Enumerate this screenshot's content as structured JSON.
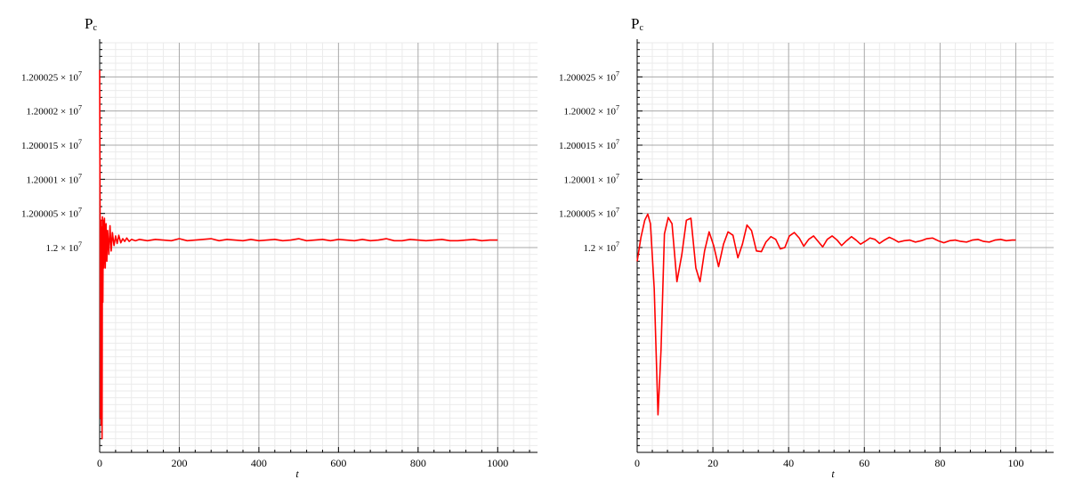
{
  "chart_data": [
    {
      "type": "line",
      "ylabel": "P",
      "ylabel_sub": "c",
      "xlabel": "t",
      "xlim": [
        0,
        1100
      ],
      "ylim": [
        11999970,
        12000030
      ],
      "x_ticks": [
        0,
        200,
        400,
        600,
        800,
        1000
      ],
      "x_tick_labels": [
        "0",
        "200",
        "400",
        "600",
        "800",
        "1000"
      ],
      "y_ticks": [
        12000000,
        12000005,
        12000010,
        12000015,
        12000020,
        12000025
      ],
      "y_tick_labels": [
        {
          "mantissa": "1.2",
          "exp": "7"
        },
        {
          "mantissa": "1.200005",
          "exp": "7"
        },
        {
          "mantissa": "1.20001",
          "exp": "7"
        },
        {
          "mantissa": "1.200015",
          "exp": "7"
        },
        {
          "mantissa": "1.20002",
          "exp": "7"
        },
        {
          "mantissa": "1.200025",
          "exp": "7"
        }
      ],
      "grid": true,
      "series": [
        {
          "color": "#ff0000",
          "x": [
            0,
            1,
            2,
            3,
            4,
            5,
            6,
            7,
            8,
            9,
            10,
            12,
            14,
            16,
            18,
            20,
            23,
            26,
            29,
            32,
            36,
            40,
            44,
            48,
            53,
            58,
            63,
            68,
            74,
            80,
            90,
            100,
            120,
            140,
            160,
            180,
            200,
            220,
            240,
            260,
            280,
            300,
            320,
            340,
            360,
            380,
            400,
            420,
            440,
            460,
            480,
            500,
            520,
            540,
            560,
            580,
            600,
            620,
            640,
            660,
            680,
            700,
            720,
            740,
            760,
            780,
            800,
            820,
            840,
            860,
            880,
            900,
            920,
            940,
            960,
            980,
            1000
          ],
          "y": [
            12000026,
            12000005,
            11999975,
            12000004,
            11999974,
            12000003,
            11999972,
            12000004.5,
            11999992,
            12000004,
            11999997,
            12000004.3,
            11999997,
            12000003.5,
            11999998,
            12000002.5,
            11999999,
            12000003.2,
            11999999.5,
            12000002.2,
            12000000.3,
            12000001.7,
            12000000.6,
            12000001.8,
            12000000.7,
            12000001.3,
            12000000.9,
            12000001.4,
            12000000.9,
            12000001.2,
            12000001.0,
            12000001.2,
            12000001.0,
            12000001.2,
            12000001.1,
            12000001.0,
            12000001.3,
            12000001.0,
            12000001.1,
            12000001.2,
            12000001.3,
            12000001.0,
            12000001.2,
            12000001.1,
            12000001.0,
            12000001.2,
            12000001.0,
            12000001.1,
            12000001.2,
            12000001.0,
            12000001.1,
            12000001.3,
            12000001.0,
            12000001.1,
            12000001.2,
            12000001.0,
            12000001.2,
            12000001.1,
            12000001.0,
            12000001.2,
            12000001.0,
            12000001.1,
            12000001.3,
            12000001.0,
            12000001.0,
            12000001.2,
            12000001.1,
            12000001.0,
            12000001.1,
            12000001.2,
            12000001.0,
            12000001.0,
            12000001.1,
            12000001.2,
            12000001.0,
            12000001.1,
            12000001.1
          ]
        }
      ]
    },
    {
      "type": "line",
      "ylabel": "P",
      "ylabel_sub": "c",
      "xlabel": "t",
      "xlim": [
        0,
        110
      ],
      "ylim": [
        11999970,
        12000030
      ],
      "x_ticks": [
        0,
        20,
        40,
        60,
        80,
        100
      ],
      "x_tick_labels": [
        "0",
        "20",
        "40",
        "60",
        "80",
        "100"
      ],
      "y_ticks": [
        12000000,
        12000005,
        12000010,
        12000015,
        12000020,
        12000025
      ],
      "y_tick_labels": [
        {
          "mantissa": "1.2",
          "exp": "7"
        },
        {
          "mantissa": "1.200005",
          "exp": "7"
        },
        {
          "mantissa": "1.20001",
          "exp": "7"
        },
        {
          "mantissa": "1.200015",
          "exp": "7"
        },
        {
          "mantissa": "1.20002",
          "exp": "7"
        },
        {
          "mantissa": "1.200025",
          "exp": "7"
        }
      ],
      "grid": true,
      "series": [
        {
          "color": "#ff0000",
          "x": [
            0,
            1,
            2,
            2.8,
            3.5,
            4.5,
            5.5,
            6.3,
            7.2,
            8.2,
            9.2,
            10.5,
            11.8,
            13,
            14.2,
            15.5,
            16.6,
            17.8,
            19,
            20.2,
            21.5,
            22.8,
            24,
            25.3,
            26.6,
            27.8,
            29,
            30.2,
            31.5,
            32.8,
            34,
            35.3,
            36.6,
            37.8,
            39,
            40.2,
            41.5,
            42.8,
            44,
            45.3,
            46.6,
            47.8,
            49,
            50.2,
            51.5,
            52.8,
            54,
            55.3,
            56.6,
            57.8,
            59,
            60.2,
            61.5,
            62.8,
            64,
            65.3,
            66.6,
            67.8,
            69,
            70.5,
            72,
            73.5,
            75,
            76.5,
            78,
            79.5,
            81,
            82.5,
            84,
            85.5,
            87,
            88.5,
            90,
            91.5,
            93,
            94.5,
            96,
            97.5,
            99,
            100
          ],
          "y": [
            11999998,
            12000001.5,
            12000004,
            12000004.9,
            12000003.5,
            11999994,
            11999975.5,
            11999985,
            12000002,
            12000004.4,
            12000003.5,
            11999995,
            11999999,
            12000004,
            12000004.3,
            11999997,
            11999995,
            11999999.5,
            12000002.3,
            12000000.3,
            11999997.2,
            12000000.5,
            12000002.3,
            12000001.8,
            11999998.5,
            12000000.5,
            12000003.3,
            12000002.5,
            11999999.5,
            11999999.4,
            12000000.8,
            12000001.6,
            12000001.2,
            11999999.8,
            12000000,
            12000001.7,
            12000002.2,
            12000001.4,
            12000000.2,
            12000001.2,
            12000001.7,
            12000000.9,
            12000000.1,
            12000001.2,
            12000001.7,
            12000001.1,
            12000000.3,
            12000001.0,
            12000001.6,
            12000001.1,
            12000000.5,
            12000000.9,
            12000001.4,
            12000001.2,
            12000000.6,
            12000001.1,
            12000001.5,
            12000001.2,
            12000000.8,
            12000001.0,
            12000001.1,
            12000000.8,
            12000001.0,
            12000001.3,
            12000001.4,
            12000001.0,
            12000000.7,
            12000001.0,
            12000001.1,
            12000000.9,
            12000000.8,
            12000001.1,
            12000001.2,
            12000000.9,
            12000000.8,
            12000001.1,
            12000001.2,
            12000001.0,
            12000001.1,
            12000001.1
          ]
        }
      ]
    }
  ]
}
